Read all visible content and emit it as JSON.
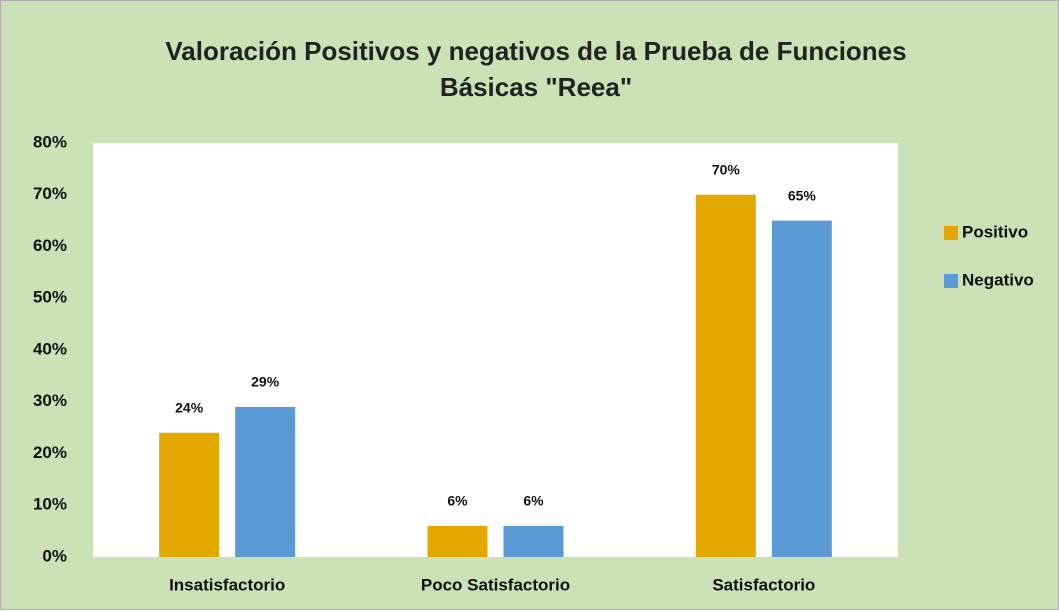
{
  "chart_data": {
    "type": "bar",
    "title": "Valoración Positivos y negativos de la Prueba de Funciones Básicas \"Reea\"",
    "categories": [
      "Insatisfactorio",
      "Poco Satisfactorio",
      "Satisfactorio"
    ],
    "series": [
      {
        "name": "Positivo",
        "color": "#e2a800",
        "values": [
          24,
          6,
          70
        ],
        "value_labels": [
          "24%",
          "6%",
          "70%"
        ]
      },
      {
        "name": "Negativo",
        "color": "#5b9bd5",
        "values": [
          29,
          6,
          65
        ],
        "value_labels": [
          "29%",
          "6%",
          "65%"
        ]
      }
    ],
    "ylim": [
      0,
      80
    ],
    "yticks": [
      {
        "value": 0,
        "label": "0%"
      },
      {
        "value": 10,
        "label": "10%"
      },
      {
        "value": 20,
        "label": "20%"
      },
      {
        "value": 30,
        "label": "30%"
      },
      {
        "value": 40,
        "label": "40%"
      },
      {
        "value": 50,
        "label": "50%"
      },
      {
        "value": 60,
        "label": "60%"
      },
      {
        "value": 70,
        "label": "70%"
      },
      {
        "value": 80,
        "label": "80%"
      }
    ],
    "grid": false,
    "legend": "right"
  }
}
